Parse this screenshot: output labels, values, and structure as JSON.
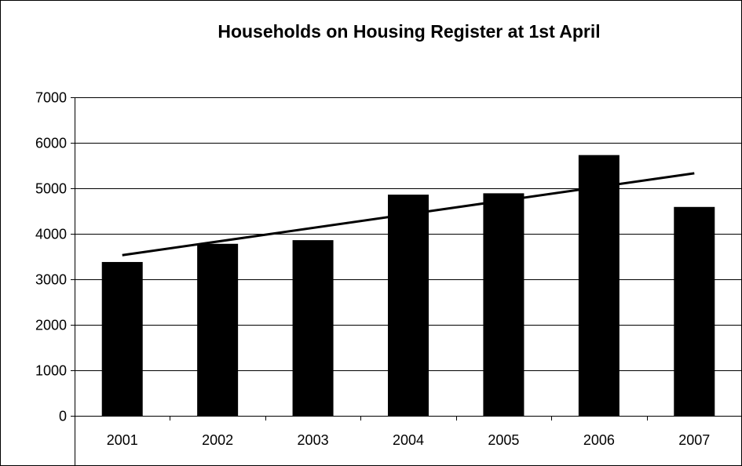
{
  "chart_data": {
    "type": "bar",
    "title": "Households on Housing Register at 1st April",
    "categories": [
      "2001",
      "2002",
      "2003",
      "2004",
      "2005",
      "2006",
      "2007"
    ],
    "series": [
      {
        "values": [
          3380,
          3780,
          3860,
          4860,
          4890,
          5730,
          4590
        ]
      }
    ],
    "trendline": {
      "type": "linear",
      "start": 3530,
      "end": 5330
    },
    "ylim": [
      0,
      7000
    ],
    "yticks": [
      0,
      1000,
      2000,
      3000,
      4000,
      5000,
      6000,
      7000
    ],
    "xlabel": "",
    "ylabel": "",
    "grid": "horizontal",
    "legend": "none",
    "colors": {
      "bar": "#000000",
      "grid": "#000000",
      "trendline": "#000000",
      "background": "#ffffff"
    }
  }
}
